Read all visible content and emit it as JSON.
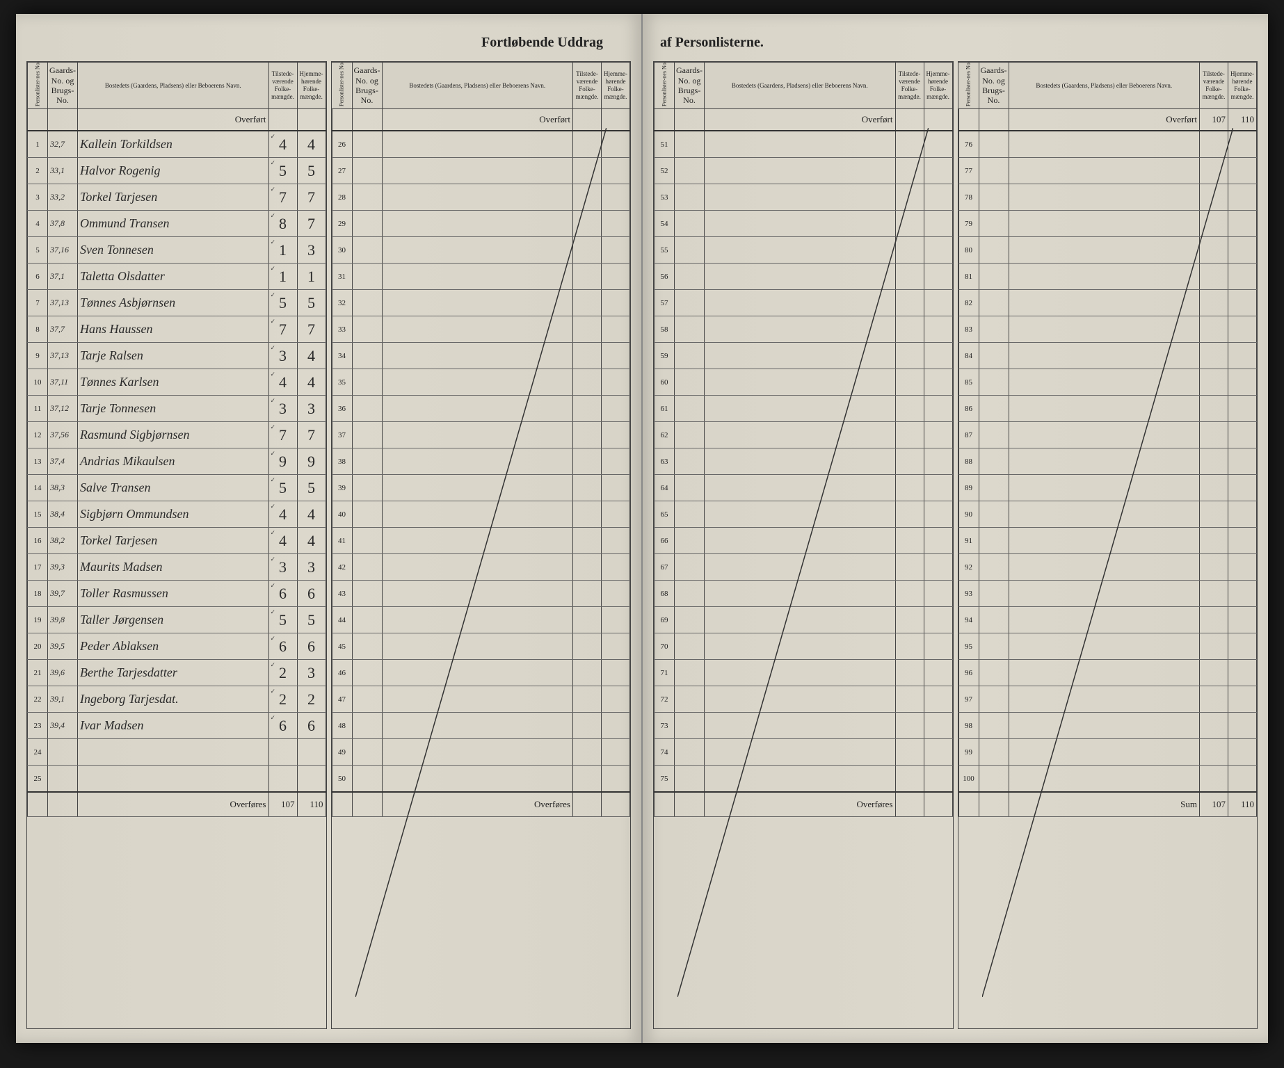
{
  "title_left": "Fortløbende Uddrag",
  "title_right": "af Personlisterne.",
  "headers": {
    "personliste": "Personlister-nes No.",
    "gaards": "Gaards-No. og Brugs-No.",
    "bosted": "Bostedets (Gaardens, Pladsens) eller Beboerens Navn.",
    "tilstede": "Tilstede-værende Folke-mængde.",
    "hjemme": "Hjemme-hørende Folke-mængde."
  },
  "overfort_label": "Overført",
  "overfores_label": "Overføres",
  "sum_label": "Sum",
  "overfort_right": {
    "tilstede": "107",
    "hjemme": "110"
  },
  "sum_totals": {
    "tilstede": "107",
    "hjemme": "110"
  },
  "overfores_left": {
    "tilstede": "107",
    "hjemme": "110"
  },
  "rows_A": [
    {
      "n": "1",
      "g": "32,7",
      "name": "Kallein Torkildsen",
      "t": "4",
      "h": "4"
    },
    {
      "n": "2",
      "g": "33,1",
      "name": "Halvor Rogenig",
      "t": "5",
      "h": "5"
    },
    {
      "n": "3",
      "g": "33,2",
      "name": "Torkel Tarjesen",
      "t": "7",
      "h": "7"
    },
    {
      "n": "4",
      "g": "37,8",
      "name": "Ommund Transen",
      "t": "8",
      "h": "7"
    },
    {
      "n": "5",
      "g": "37,16",
      "name": "Sven Tonnesen",
      "t": "1",
      "h": "3"
    },
    {
      "n": "6",
      "g": "37,1",
      "name": "Taletta Olsdatter",
      "t": "1",
      "h": "1"
    },
    {
      "n": "7",
      "g": "37,13",
      "name": "Tønnes Asbjørnsen",
      "t": "5",
      "h": "5"
    },
    {
      "n": "8",
      "g": "37,7",
      "name": "Hans Haussen",
      "t": "7",
      "h": "7"
    },
    {
      "n": "9",
      "g": "37,13",
      "name": "Tarje Ralsen",
      "t": "3",
      "h": "4"
    },
    {
      "n": "10",
      "g": "37,11",
      "name": "Tønnes Karlsen",
      "t": "4",
      "h": "4"
    },
    {
      "n": "11",
      "g": "37,12",
      "name": "Tarje Tonnesen",
      "t": "3",
      "h": "3"
    },
    {
      "n": "12",
      "g": "37,56",
      "name": "Rasmund Sigbjørnsen",
      "t": "7",
      "h": "7"
    },
    {
      "n": "13",
      "g": "37,4",
      "name": "Andrias Mikaulsen",
      "t": "9",
      "h": "9"
    },
    {
      "n": "14",
      "g": "38,3",
      "name": "Salve Transen",
      "t": "5",
      "h": "5"
    },
    {
      "n": "15",
      "g": "38,4",
      "name": "Sigbjørn Ommundsen",
      "t": "4",
      "h": "4"
    },
    {
      "n": "16",
      "g": "38,2",
      "name": "Torkel Tarjesen",
      "t": "4",
      "h": "4"
    },
    {
      "n": "17",
      "g": "39,3",
      "name": "Maurits Madsen",
      "t": "3",
      "h": "3"
    },
    {
      "n": "18",
      "g": "39,7",
      "name": "Toller Rasmussen",
      "t": "6",
      "h": "6"
    },
    {
      "n": "19",
      "g": "39,8",
      "name": "Taller Jørgensen",
      "t": "5",
      "h": "5"
    },
    {
      "n": "20",
      "g": "39,5",
      "name": "Peder Ablaksen",
      "t": "6",
      "h": "6"
    },
    {
      "n": "21",
      "g": "39,6",
      "name": "Berthe Tarjesdatter",
      "t": "2",
      "h": "3"
    },
    {
      "n": "22",
      "g": "39,1",
      "name": "Ingeborg Tarjesdat.",
      "t": "2",
      "h": "2"
    },
    {
      "n": "23",
      "g": "39,4",
      "name": "Ivar Madsen",
      "t": "6",
      "h": "6"
    },
    {
      "n": "24",
      "g": "",
      "name": "",
      "t": "",
      "h": ""
    },
    {
      "n": "25",
      "g": "",
      "name": "",
      "t": "",
      "h": ""
    }
  ],
  "range_B": [
    26,
    50
  ],
  "range_C": [
    51,
    75
  ],
  "range_D": [
    76,
    100
  ]
}
